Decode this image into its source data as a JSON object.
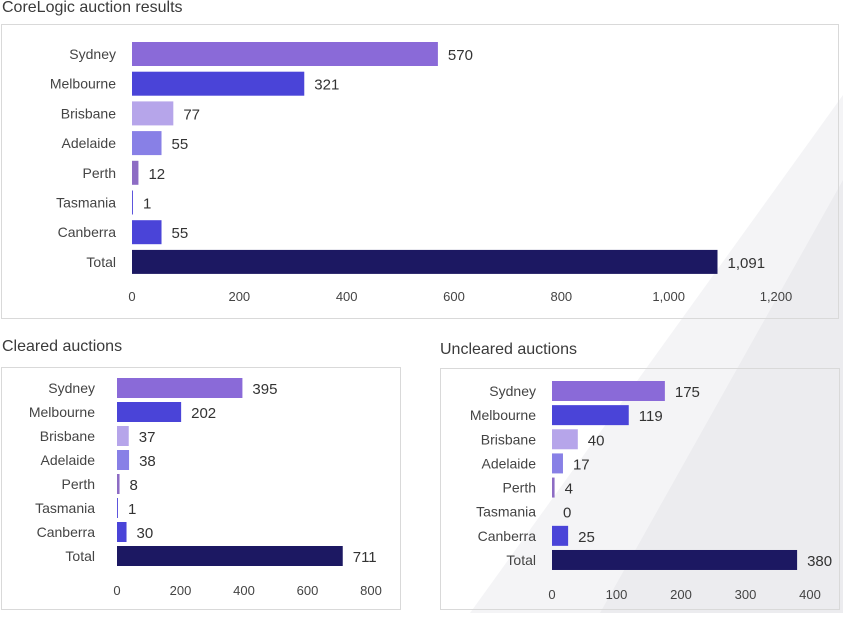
{
  "colors": {
    "Sydney": "#8a6ad8",
    "Melbourne": "#4a44d8",
    "Brisbane": "#b6a5ea",
    "Adelaide": "#8880e6",
    "Perth": "#8d6cc4",
    "Tasmania": "#5d55dd",
    "Canberra": "#4a44d8",
    "Total": "#1c1862"
  },
  "chart_data": [
    {
      "type": "bar",
      "orientation": "horizontal",
      "title": "CoreLogic auction results",
      "categories": [
        "Sydney",
        "Melbourne",
        "Brisbane",
        "Adelaide",
        "Perth",
        "Tasmania",
        "Canberra",
        "Total"
      ],
      "values": [
        570,
        321,
        77,
        55,
        12,
        1,
        55,
        1091
      ],
      "value_labels": [
        "570",
        "321",
        "77",
        "55",
        "12",
        "1",
        "55",
        "1,091"
      ],
      "xlim": [
        0,
        1200
      ],
      "xticks": [
        0,
        200,
        400,
        600,
        800,
        1000,
        1200
      ],
      "xtick_labels": [
        "0",
        "200",
        "400",
        "600",
        "800",
        "1,000",
        "1,200"
      ],
      "grid": false,
      "legend": "none"
    },
    {
      "type": "bar",
      "orientation": "horizontal",
      "title": "Cleared auctions",
      "categories": [
        "Sydney",
        "Melbourne",
        "Brisbane",
        "Adelaide",
        "Perth",
        "Tasmania",
        "Canberra",
        "Total"
      ],
      "values": [
        395,
        202,
        37,
        38,
        8,
        1,
        30,
        711
      ],
      "value_labels": [
        "395",
        "202",
        "37",
        "38",
        "8",
        "1",
        "30",
        "711"
      ],
      "xlim": [
        0,
        800
      ],
      "xticks": [
        0,
        200,
        400,
        600,
        800
      ],
      "xtick_labels": [
        "0",
        "200",
        "400",
        "600",
        "800"
      ],
      "grid": false,
      "legend": "none"
    },
    {
      "type": "bar",
      "orientation": "horizontal",
      "title": "Uncleared auctions",
      "categories": [
        "Sydney",
        "Melbourne",
        "Brisbane",
        "Adelaide",
        "Perth",
        "Tasmania",
        "Canberra",
        "Total"
      ],
      "values": [
        175,
        119,
        40,
        17,
        4,
        0,
        25,
        380
      ],
      "value_labels": [
        "175",
        "119",
        "40",
        "17",
        "4",
        "0",
        "25",
        "380"
      ],
      "xlim": [
        0,
        400
      ],
      "xticks": [
        0,
        100,
        200,
        300,
        400
      ],
      "xtick_labels": [
        "0",
        "100",
        "200",
        "300",
        "400"
      ],
      "grid": false,
      "legend": "none"
    }
  ]
}
